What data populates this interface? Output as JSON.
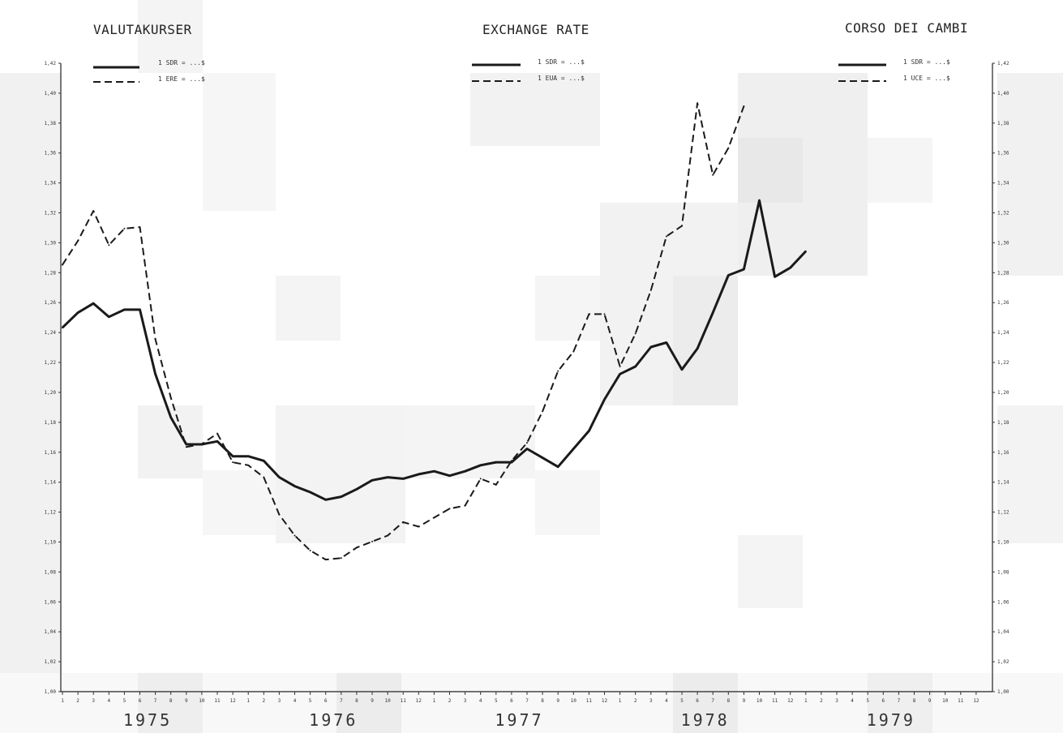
{
  "chart_data": {
    "type": "line",
    "titles": [
      "VALUTAKURSER",
      "EXCHANGE RATE",
      "CORSO DEI CAMBI"
    ],
    "legends": [
      {
        "solid": "1 SDR = ...$",
        "dashed": "1 ERE = ...$"
      },
      {
        "solid": "1 SDR = ...$",
        "dashed": "1 EUA = ...$"
      },
      {
        "solid": "1 SDR = ...$",
        "dashed": "1 UCE = ...$"
      }
    ],
    "years": [
      "1975",
      "1976",
      "1977",
      "1978",
      "1979"
    ],
    "x_start": {
      "year": 1975,
      "month": 1
    },
    "months_per_axis": 60,
    "ylim": [
      1.0,
      1.42
    ],
    "y_ticks": [
      "1,00",
      "1,02",
      "1,04",
      "1,06",
      "1,08",
      "1,10",
      "1,12",
      "1,14",
      "1,16",
      "1,18",
      "1,20",
      "1,22",
      "1,24",
      "1,26",
      "1,28",
      "1,30",
      "1,32",
      "1,34",
      "1,36",
      "1,38",
      "1,40",
      "1,42"
    ],
    "series": [
      {
        "style": "solid",
        "values": [
          1.2433,
          1.2533,
          1.2595,
          1.2505,
          1.2553,
          1.2553,
          1.2123,
          1.1833,
          1.1653,
          1.1653,
          1.1673,
          1.1573,
          1.1573,
          1.1543,
          1.1433,
          1.1373,
          1.1333,
          1.1283,
          1.1303,
          1.1353,
          1.1413,
          1.1433,
          1.1423,
          1.1453,
          1.1473,
          1.1443,
          1.1473,
          1.1513,
          1.1533,
          1.1533,
          1.1623,
          1.1563,
          1.1503,
          1.1623,
          1.1743,
          1.1953,
          1.2123,
          1.2173,
          1.2303,
          1.2333,
          1.2153,
          1.2293,
          1.2533,
          1.2783,
          1.2823,
          1.3283,
          1.2773,
          1.2833,
          1.2943
        ]
      },
      {
        "style": "dashed",
        "values": [
          1.2853,
          1.3013,
          1.3213,
          1.2985,
          1.3095,
          1.3105,
          1.2355,
          1.1965,
          1.1635,
          1.1655,
          1.1725,
          1.1533,
          1.1513,
          1.1433,
          1.1183,
          1.1043,
          1.0943,
          1.0883,
          1.0893,
          1.0963,
          1.1003,
          1.1043,
          1.1133,
          1.1103,
          1.1163,
          1.1223,
          1.1243,
          1.1423,
          1.1383,
          1.1543,
          1.1663,
          1.1873,
          1.2143,
          1.2273,
          1.2523,
          1.2523,
          1.2173,
          1.2393,
          1.2683,
          1.3043,
          1.3113,
          1.3933,
          1.3453,
          1.3633,
          1.3913
        ]
      }
    ],
    "legend_position": "top (one legend under each title)",
    "grid": false
  }
}
